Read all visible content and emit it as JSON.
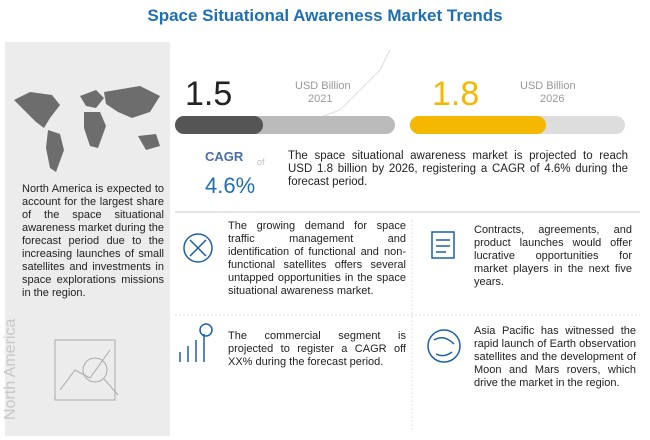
{
  "title": "Space Situational Awareness  Market Trends",
  "left_panel": {
    "text": "North America is expected to account for the largest share of the space situational awareness market during the forecast period due to the increasing launches of small satellites and investments in space explorations missions in the region.",
    "region": "North America"
  },
  "stats": [
    {
      "value": "1.5",
      "unit": "USD Billion",
      "year": "2021"
    },
    {
      "value": "1.8",
      "unit": "USD Billion",
      "year": "2026"
    }
  ],
  "cagr": {
    "label": "CAGR",
    "connector": "of",
    "value": "4.6%"
  },
  "summary": "The space situational awareness market is projected to reach USD  1.8 billion by 2026, registering a CAGR of 4.6% during the forecast period.",
  "insights": [
    "The growing demand for space traffic management and identification of functional and non-functional satellites offers several untapped opportunities in the space situational awareness market.",
    "Contracts, agreements, and product launches would offer lucrative opportunities for market players in the next five years.",
    "The commercial segment is projected to register a CAGR off XX% during the forecast period.",
    "Asia Pacific has witnessed the rapid launch of Earth observation satellites and the development of Moon and Mars rovers, which drive the market in the region."
  ]
}
